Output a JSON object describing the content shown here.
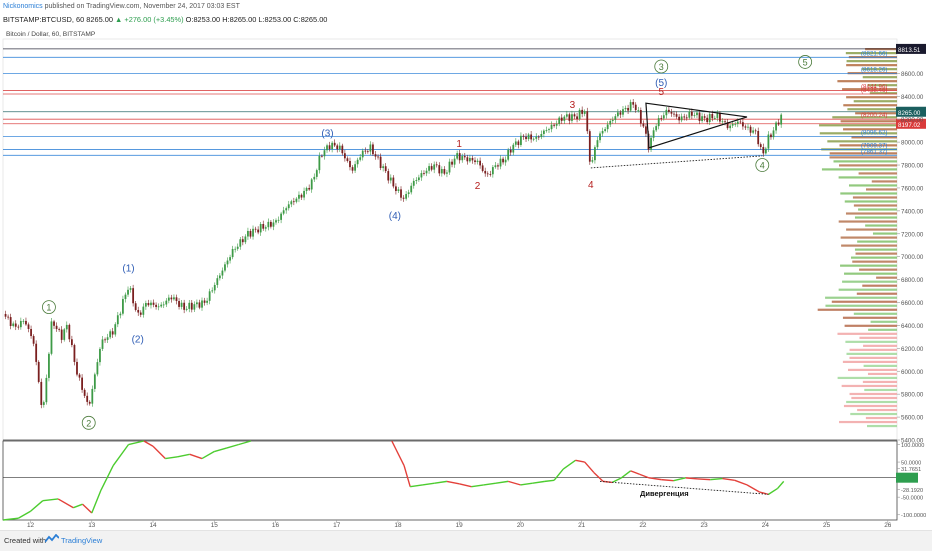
{
  "header": {
    "publisher": "Nickonomics",
    "published_text": "published on TradingView.com, November 24, 2017 03:03 EST",
    "symbol_line": "BITSTAMP:BTCUSD, 60",
    "last": "8265.00",
    "change": "▲ +276.00 (+3.45%)",
    "ohlc": "O:8253.00 H:8265.00 L:8253.00 C:8265.00",
    "pair_label": "Bitcoin / Dollar, 60, BITSTAMP"
  },
  "footer": {
    "created_with": "Created with",
    "brand": "TradingView"
  },
  "chart_data": {
    "type": "candlestick",
    "ylim": [
      5400,
      8900
    ],
    "y_ticks": [
      "8600.00",
      "8400.00",
      "8200.00",
      "8000.00",
      "7800.00",
      "7600.00",
      "7400.00",
      "7200.00",
      "7000.00",
      "6800.00",
      "6600.00",
      "6400.00",
      "6200.00",
      "6000.00",
      "5800.00",
      "5600.00",
      "5400.00"
    ],
    "y_tick_values": [
      8600,
      8400,
      8200,
      8000,
      7800,
      7600,
      7400,
      7200,
      7000,
      6800,
      6600,
      6400,
      6200,
      6000,
      5800,
      5600,
      5400
    ],
    "x_ticks": [
      "12",
      "13",
      "14",
      "15",
      "16",
      "17",
      "18",
      "19",
      "20",
      "21",
      "22",
      "23",
      "24",
      "25",
      "26"
    ],
    "x_tick_days": [
      12,
      13,
      14,
      15,
      16,
      17,
      18,
      19,
      20,
      21,
      22,
      23,
      24,
      25,
      26
    ],
    "x_range_days": [
      11.55,
      26.15
    ],
    "price_path": [
      [
        11.55,
        6500
      ],
      [
        11.75,
        6380
      ],
      [
        11.9,
        6450
      ],
      [
        12.05,
        6250
      ],
      [
        12.2,
        5620
      ],
      [
        12.35,
        6450
      ],
      [
        12.5,
        6300
      ],
      [
        12.6,
        6400
      ],
      [
        12.75,
        6000
      ],
      [
        12.95,
        5680
      ],
      [
        13.15,
        6250
      ],
      [
        13.35,
        6350
      ],
      [
        13.6,
        6750
      ],
      [
        13.75,
        6480
      ],
      [
        13.9,
        6600
      ],
      [
        14.1,
        6560
      ],
      [
        14.3,
        6650
      ],
      [
        14.5,
        6550
      ],
      [
        14.7,
        6580
      ],
      [
        14.85,
        6600
      ],
      [
        15.05,
        6800
      ],
      [
        15.3,
        7050
      ],
      [
        15.55,
        7200
      ],
      [
        15.75,
        7250
      ],
      [
        16.0,
        7300
      ],
      [
        16.2,
        7450
      ],
      [
        16.45,
        7550
      ],
      [
        16.6,
        7650
      ],
      [
        16.75,
        7900
      ],
      [
        16.9,
        7980
      ],
      [
        17.05,
        7950
      ],
      [
        17.25,
        7750
      ],
      [
        17.4,
        7900
      ],
      [
        17.55,
        7950
      ],
      [
        17.75,
        7780
      ],
      [
        17.95,
        7600
      ],
      [
        18.1,
        7500
      ],
      [
        18.25,
        7650
      ],
      [
        18.45,
        7750
      ],
      [
        18.6,
        7800
      ],
      [
        18.75,
        7720
      ],
      [
        18.95,
        7880
      ],
      [
        19.15,
        7850
      ],
      [
        19.3,
        7830
      ],
      [
        19.45,
        7700
      ],
      [
        19.6,
        7800
      ],
      [
        19.75,
        7850
      ],
      [
        19.85,
        7950
      ],
      [
        20.05,
        8050
      ],
      [
        20.25,
        8030
      ],
      [
        20.4,
        8100
      ],
      [
        20.55,
        8150
      ],
      [
        20.7,
        8220
      ],
      [
        20.9,
        8220
      ],
      [
        21.05,
        8280
      ],
      [
        21.15,
        7770
      ],
      [
        21.25,
        8030
      ],
      [
        21.35,
        8100
      ],
      [
        21.5,
        8200
      ],
      [
        21.6,
        8250
      ],
      [
        21.75,
        8300
      ],
      [
        21.85,
        8340
      ],
      [
        22.0,
        8150
      ],
      [
        22.1,
        7950
      ],
      [
        22.2,
        8150
      ],
      [
        22.4,
        8280
      ],
      [
        22.6,
        8200
      ],
      [
        22.8,
        8250
      ],
      [
        23.0,
        8200
      ],
      [
        23.2,
        8230
      ],
      [
        23.4,
        8130
      ],
      [
        23.55,
        8180
      ],
      [
        23.7,
        8120
      ],
      [
        23.85,
        8080
      ],
      [
        23.95,
        7880
      ],
      [
        24.05,
        8030
      ],
      [
        24.15,
        8120
      ],
      [
        24.3,
        8265
      ]
    ],
    "levels": [
      {
        "label": "8813.51",
        "price": 8813.51,
        "color": "#1a1a2e",
        "badge": true
      },
      {
        "label": "8821.66",
        "price": 8740,
        "color": "#2a7ed6"
      },
      {
        "label": "8618.26",
        "price": 8600,
        "color": "#2a7ed6"
      },
      {
        "label": "8444.96",
        "price": 8450,
        "color": "#d93a3a"
      },
      {
        "label": "8438.46",
        "price": 8420,
        "color": "#d93a3a"
      },
      {
        "label": "8265.00",
        "price": 8265,
        "color": "#1a5e5e",
        "badge": true
      },
      {
        "label": "8200.24",
        "price": 8200,
        "color": "#d93a3a"
      },
      {
        "label": "8197.02",
        "price": 8160,
        "color": "#d93a3a",
        "badge": true
      },
      {
        "label": "8096.62",
        "price": 8050,
        "color": "#2a7ed6"
      },
      {
        "label": "7909.37",
        "price": 7935,
        "color": "#2a7ed6"
      },
      {
        "label": "7861.37",
        "price": 7885,
        "color": "#2a7ed6"
      }
    ],
    "wave_labels": [
      {
        "text": "1",
        "day": 12.3,
        "price": 6560,
        "style": "circle"
      },
      {
        "text": "2",
        "day": 12.95,
        "price": 5550,
        "style": "circle"
      },
      {
        "text": "(1)",
        "day": 13.6,
        "price": 6900,
        "style": "paren"
      },
      {
        "text": "(2)",
        "day": 13.75,
        "price": 6280,
        "style": "paren"
      },
      {
        "text": "(3)",
        "day": 16.85,
        "price": 8080,
        "style": "paren"
      },
      {
        "text": "(4)",
        "day": 17.95,
        "price": 7360,
        "style": "paren"
      },
      {
        "text": "1",
        "day": 19.0,
        "price": 7990,
        "style": "red"
      },
      {
        "text": "2",
        "day": 19.3,
        "price": 7620,
        "style": "red"
      },
      {
        "text": "3",
        "day": 20.85,
        "price": 8330,
        "style": "red"
      },
      {
        "text": "4",
        "day": 21.15,
        "price": 7630,
        "style": "red"
      },
      {
        "text": "5",
        "day": 22.3,
        "price": 8440,
        "style": "red"
      },
      {
        "text": "(5)",
        "day": 22.3,
        "price": 8520,
        "style": "paren"
      },
      {
        "text": "3",
        "day": 22.3,
        "price": 8660,
        "style": "circle"
      },
      {
        "text": "4",
        "day": 23.95,
        "price": 7800,
        "style": "circle"
      },
      {
        "text": "5",
        "day": 24.65,
        "price": 8700,
        "style": "circle"
      }
    ],
    "indicator": {
      "y_ticks": [
        "100.0000",
        "50.0000",
        "31.7651",
        "5.5000",
        "-28.1920",
        "-50.0000",
        "-100.0000"
      ],
      "y_tick_values": [
        100,
        50,
        31.77,
        5.5,
        -28.19,
        -50,
        -100
      ],
      "ylim": [
        -115,
        110
      ],
      "annotation": "Дивергенция",
      "path": [
        [
          11.55,
          -120
        ],
        [
          11.8,
          -110
        ],
        [
          12.0,
          -90
        ],
        [
          12.2,
          -60
        ],
        [
          12.45,
          -55
        ],
        [
          12.7,
          -80
        ],
        [
          12.85,
          -70
        ],
        [
          13.0,
          -95
        ],
        [
          13.15,
          -30
        ],
        [
          13.35,
          40
        ],
        [
          13.6,
          100
        ],
        [
          13.85,
          110
        ],
        [
          14.0,
          95
        ],
        [
          14.2,
          60
        ],
        [
          14.4,
          65
        ],
        [
          14.6,
          72
        ],
        [
          14.8,
          60
        ],
        [
          15.0,
          80
        ],
        [
          15.2,
          90
        ],
        [
          15.4,
          100
        ],
        [
          15.6,
          110
        ],
        [
          17.9,
          110
        ],
        [
          18.1,
          40
        ],
        [
          18.2,
          -20
        ],
        [
          18.4,
          -15
        ],
        [
          18.6,
          -10
        ],
        [
          18.8,
          -5
        ],
        [
          19.0,
          -12
        ],
        [
          19.2,
          -20
        ],
        [
          19.4,
          -15
        ],
        [
          19.6,
          -10
        ],
        [
          19.8,
          -5
        ],
        [
          20.0,
          -15
        ],
        [
          20.2,
          -10
        ],
        [
          20.4,
          -5
        ],
        [
          20.55,
          -2
        ],
        [
          20.7,
          30
        ],
        [
          20.9,
          55
        ],
        [
          21.05,
          50
        ],
        [
          21.2,
          20
        ],
        [
          21.35,
          -5
        ],
        [
          21.5,
          -8
        ],
        [
          21.65,
          5
        ],
        [
          21.8,
          25
        ],
        [
          21.95,
          15
        ],
        [
          22.1,
          5
        ],
        [
          22.3,
          0
        ],
        [
          22.5,
          -3
        ],
        [
          22.7,
          5
        ],
        [
          22.9,
          2
        ],
        [
          23.1,
          0
        ],
        [
          23.3,
          3
        ],
        [
          23.5,
          -2
        ],
        [
          23.7,
          -15
        ],
        [
          23.9,
          -35
        ],
        [
          24.05,
          -42
        ],
        [
          24.2,
          -25
        ],
        [
          24.3,
          -5
        ]
      ]
    }
  }
}
